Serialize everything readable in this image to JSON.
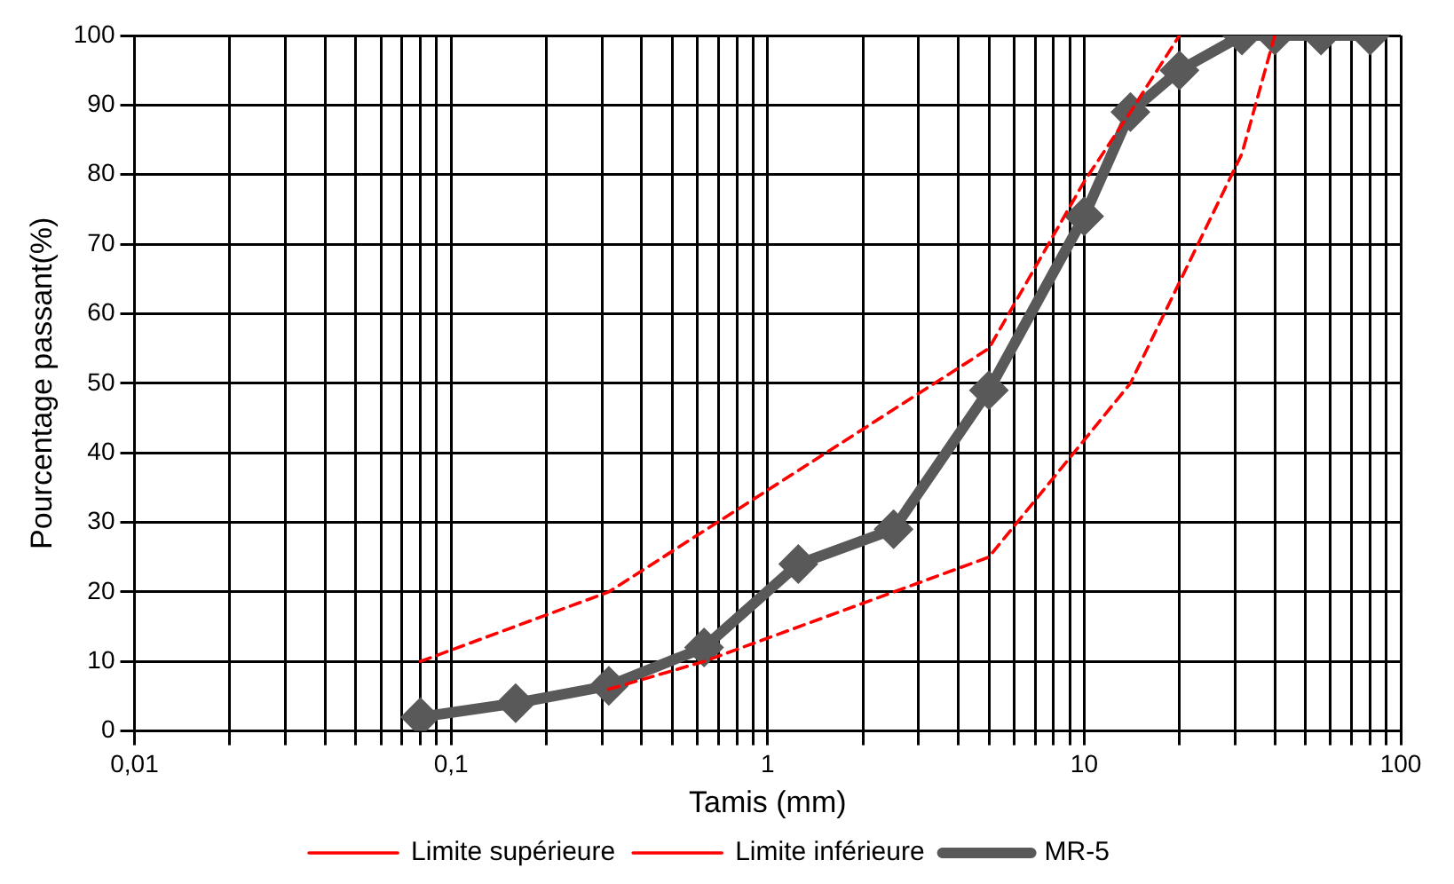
{
  "chart_data": {
    "type": "line",
    "xlabel": "Tamis (mm)",
    "ylabel": "Pourcentage passant(%)",
    "log": "x",
    "grid": true,
    "legend": "bottom",
    "xlim": [
      0.01,
      100
    ],
    "xticks": [
      {
        "value": 0.01,
        "label": "0,01"
      },
      {
        "value": 0.02,
        "label": null
      },
      {
        "value": 0.03,
        "label": null
      },
      {
        "value": 0.04,
        "label": null
      },
      {
        "value": 0.05,
        "label": null
      },
      {
        "value": 0.06,
        "label": null
      },
      {
        "value": 0.07,
        "label": null
      },
      {
        "value": 0.08,
        "label": null
      },
      {
        "value": 0.09,
        "label": null
      },
      {
        "value": 0.1,
        "label": "0,1"
      },
      {
        "value": 0.2,
        "label": null
      },
      {
        "value": 0.3,
        "label": null
      },
      {
        "value": 0.4,
        "label": null
      },
      {
        "value": 0.5,
        "label": null
      },
      {
        "value": 0.6,
        "label": null
      },
      {
        "value": 0.7,
        "label": null
      },
      {
        "value": 0.8,
        "label": null
      },
      {
        "value": 0.9,
        "label": null
      },
      1,
      {
        "value": 2,
        "label": null
      },
      {
        "value": 3,
        "label": null
      },
      {
        "value": 4,
        "label": null
      },
      {
        "value": 5,
        "label": null
      },
      {
        "value": 6,
        "label": null
      },
      {
        "value": 7,
        "label": null
      },
      {
        "value": 8,
        "label": null
      },
      {
        "value": 9,
        "label": null
      },
      10,
      {
        "value": 20,
        "label": null
      },
      {
        "value": 30,
        "label": null
      },
      {
        "value": 40,
        "label": null
      },
      {
        "value": 50,
        "label": null
      },
      {
        "value": 60,
        "label": null
      },
      {
        "value": 70,
        "label": null
      },
      {
        "value": 80,
        "label": null
      },
      {
        "value": 90,
        "label": null
      },
      100
    ],
    "ylim": [
      0,
      100
    ],
    "yticks": [
      0,
      10,
      20,
      30,
      40,
      50,
      60,
      70,
      80,
      90,
      100
    ],
    "series": [
      {
        "name": "Limite supérieure",
        "color": "#ff0000",
        "line_style": "dashed",
        "marker": "none",
        "x": [
          0.08,
          0.315,
          5,
          10,
          14,
          20
        ],
        "values": [
          10,
          20,
          55,
          79,
          89,
          100
        ]
      },
      {
        "name": "Limite inférieure",
        "color": "#ff0000",
        "line_style": "dashed",
        "marker": "none",
        "x": [
          0.315,
          0.63,
          5,
          14,
          31.5,
          40
        ],
        "values": [
          6,
          10,
          25,
          50,
          83,
          100
        ]
      },
      {
        "name": "MR-5",
        "color": "#595959",
        "line_style": "solid",
        "marker": "diamond",
        "x": [
          0.08,
          0.16,
          0.315,
          0.63,
          1.25,
          2.5,
          5,
          10,
          14,
          20,
          31.5,
          40,
          56,
          80
        ],
        "values": [
          2,
          4,
          6.5,
          12,
          24,
          29,
          49,
          74,
          89,
          95,
          100,
          100,
          100,
          100
        ]
      }
    ]
  }
}
